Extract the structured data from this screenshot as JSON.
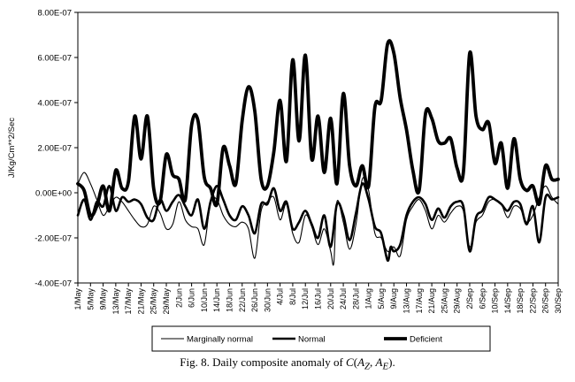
{
  "caption": {
    "prefix": "Fig. 8. Daily composite anomaly of ",
    "formula_html": "<i>C</i>(<i>A</i><sub><i>Z</i></sub>, <i>A</i><sub><i>E</i></sub>)."
  },
  "chart_data": {
    "type": "line",
    "title": "",
    "ylabel": "J/Kg/Cm**2/Sec",
    "xlabel": "",
    "ylim": [
      -4e-07,
      8e-07
    ],
    "y_ticks": [
      "8.00E-07",
      "6.00E-07",
      "4.00E-07",
      "2.00E-07",
      "0.00E+00",
      "-2.00E-07",
      "-4.00E-07"
    ],
    "y_tick_values": [
      8e-07,
      6e-07,
      4e-07,
      2e-07,
      0,
      -2e-07,
      -4e-07
    ],
    "x_start": "1/May",
    "x_end": "30/Sep",
    "n_days": 153,
    "x_tick_labels": [
      "1/May",
      "5/May",
      "9/May",
      "13/May",
      "17/May",
      "21/May",
      "25/May",
      "29/May",
      "2/Jun",
      "6/Jun",
      "10/Jun",
      "14/Jun",
      "18/Jun",
      "22/Jun",
      "26/Jun",
      "30/Jun",
      "4/Jul",
      "8/Jul",
      "12/Jul",
      "16/Jul",
      "20/Jul",
      "24/Jul",
      "28/Jul",
      "1/Aug",
      "5/Aug",
      "9/Aug",
      "13/Aug",
      "17/Aug",
      "21/Aug",
      "25/Aug",
      "29/Aug",
      "2/Sep",
      "6/Sep",
      "10/Sep",
      "14/Sep",
      "18/Sep",
      "22/Sep",
      "26/Sep",
      "30/Sep"
    ],
    "grid": false,
    "legend_position": "bottom",
    "series": [
      {
        "name": "Marginally normal",
        "style": "thin",
        "color": "#000000",
        "points": [
          [
            "1/May",
            0.4
          ],
          [
            "3/May",
            0.9
          ],
          [
            "5/May",
            0.4
          ],
          [
            "7/May",
            -0.3
          ],
          [
            "9/May",
            -1.0
          ],
          [
            "11/May",
            -0.6
          ],
          [
            "13/May",
            -0.2
          ],
          [
            "15/May",
            -0.4
          ],
          [
            "17/May",
            -0.8
          ],
          [
            "19/May",
            -1.2
          ],
          [
            "21/May",
            -1.5
          ],
          [
            "23/May",
            -1.4
          ],
          [
            "25/May",
            -0.6
          ],
          [
            "27/May",
            -0.9
          ],
          [
            "29/May",
            -1.6
          ],
          [
            "31/May",
            -1.4
          ],
          [
            "2/Jun",
            -0.4
          ],
          [
            "4/Jun",
            -1.2
          ],
          [
            "6/Jun",
            -1.5
          ],
          [
            "8/Jun",
            -1.6
          ],
          [
            "10/Jun",
            -2.3
          ],
          [
            "12/Jun",
            -0.4
          ],
          [
            "14/Jun",
            -0.3
          ],
          [
            "16/Jun",
            -1.0
          ],
          [
            "18/Jun",
            -1.4
          ],
          [
            "20/Jun",
            -1.5
          ],
          [
            "22/Jun",
            -1.3
          ],
          [
            "24/Jun",
            -1.6
          ],
          [
            "26/Jun",
            -2.9
          ],
          [
            "28/Jun",
            -0.8
          ],
          [
            "30/Jun",
            -0.4
          ],
          [
            "2/Jul",
            -0.2
          ],
          [
            "4/Jul",
            -1.2
          ],
          [
            "6/Jul",
            -0.5
          ],
          [
            "8/Jul",
            -1.8
          ],
          [
            "10/Jul",
            -2.2
          ],
          [
            "12/Jul",
            -1.0
          ],
          [
            "14/Jul",
            -1.5
          ],
          [
            "16/Jul",
            -2.3
          ],
          [
            "18/Jul",
            -1.6
          ],
          [
            "20/Jul",
            -2.6
          ],
          [
            "21/Jul",
            -3.1
          ],
          [
            "22/Jul",
            -0.4
          ],
          [
            "24/Jul",
            -1.3
          ],
          [
            "26/Jul",
            -2.5
          ],
          [
            "28/Jul",
            -1.4
          ],
          [
            "30/Jul",
            0.6
          ],
          [
            "1/Aug",
            0.1
          ],
          [
            "3/Aug",
            -1.8
          ],
          [
            "5/Aug",
            -2.0
          ],
          [
            "7/Aug",
            -2.6
          ],
          [
            "9/Aug",
            -2.4
          ],
          [
            "11/Aug",
            -2.8
          ],
          [
            "13/Aug",
            -1.2
          ],
          [
            "15/Aug",
            -0.6
          ],
          [
            "17/Aug",
            -0.3
          ],
          [
            "19/Aug",
            -0.8
          ],
          [
            "21/Aug",
            -1.6
          ],
          [
            "23/Aug",
            -1.0
          ],
          [
            "25/Aug",
            -1.3
          ],
          [
            "27/Aug",
            -0.9
          ],
          [
            "29/Aug",
            -0.6
          ],
          [
            "31/Aug",
            -0.8
          ],
          [
            "2/Sep",
            -2.4
          ],
          [
            "4/Sep",
            -1.3
          ],
          [
            "6/Sep",
            -1.0
          ],
          [
            "8/Sep",
            -0.4
          ],
          [
            "10/Sep",
            -0.3
          ],
          [
            "12/Sep",
            -0.5
          ],
          [
            "14/Sep",
            -1.1
          ],
          [
            "16/Sep",
            -0.6
          ],
          [
            "18/Sep",
            -0.7
          ],
          [
            "20/Sep",
            -1.3
          ],
          [
            "22/Sep",
            -1.0
          ],
          [
            "24/Sep",
            -0.2
          ],
          [
            "26/Sep",
            0.3
          ],
          [
            "28/Sep",
            -0.2
          ],
          [
            "30/Sep",
            -0.5
          ]
        ]
      },
      {
        "name": "Normal",
        "style": "medium",
        "color": "#000000",
        "points": [
          [
            "1/May",
            -1.0
          ],
          [
            "3/May",
            -0.3
          ],
          [
            "5/May",
            -1.2
          ],
          [
            "7/May",
            -0.4
          ],
          [
            "9/May",
            -0.6
          ],
          [
            "11/May",
            0.3
          ],
          [
            "13/May",
            -0.8
          ],
          [
            "15/May",
            -0.2
          ],
          [
            "17/May",
            -0.4
          ],
          [
            "19/May",
            -0.3
          ],
          [
            "21/May",
            -0.5
          ],
          [
            "23/May",
            -1.1
          ],
          [
            "25/May",
            -1.2
          ],
          [
            "27/May",
            -0.3
          ],
          [
            "29/May",
            -0.8
          ],
          [
            "31/May",
            -0.4
          ],
          [
            "2/Jun",
            -0.1
          ],
          [
            "4/Jun",
            -0.6
          ],
          [
            "6/Jun",
            -1.0
          ],
          [
            "8/Jun",
            -0.3
          ],
          [
            "10/Jun",
            -1.6
          ],
          [
            "12/Jun",
            -0.4
          ],
          [
            "14/Jun",
            0.3
          ],
          [
            "16/Jun",
            -0.3
          ],
          [
            "18/Jun",
            -1.0
          ],
          [
            "20/Jun",
            -1.2
          ],
          [
            "22/Jun",
            -0.6
          ],
          [
            "24/Jun",
            -1.0
          ],
          [
            "26/Jun",
            -1.8
          ],
          [
            "28/Jun",
            -0.5
          ],
          [
            "30/Jun",
            -0.5
          ],
          [
            "2/Jul",
            0.2
          ],
          [
            "4/Jul",
            -0.8
          ],
          [
            "6/Jul",
            -0.4
          ],
          [
            "8/Jul",
            -1.6
          ],
          [
            "10/Jul",
            -1.3
          ],
          [
            "12/Jul",
            -0.8
          ],
          [
            "14/Jul",
            -1.4
          ],
          [
            "16/Jul",
            -2.0
          ],
          [
            "18/Jul",
            -1.0
          ],
          [
            "20/Jul",
            -2.4
          ],
          [
            "22/Jul",
            -0.5
          ],
          [
            "24/Jul",
            -1.0
          ],
          [
            "26/Jul",
            -2.1
          ],
          [
            "28/Jul",
            -0.9
          ],
          [
            "30/Jul",
            0.4
          ],
          [
            "1/Aug",
            -0.3
          ],
          [
            "3/Aug",
            -1.5
          ],
          [
            "5/Aug",
            -1.8
          ],
          [
            "7/Aug",
            -3.0
          ],
          [
            "8/Aug",
            -2.4
          ],
          [
            "9/Aug",
            -2.6
          ],
          [
            "11/Aug",
            -2.3
          ],
          [
            "13/Aug",
            -1.0
          ],
          [
            "15/Aug",
            -0.4
          ],
          [
            "17/Aug",
            -0.2
          ],
          [
            "19/Aug",
            -0.5
          ],
          [
            "21/Aug",
            -1.2
          ],
          [
            "23/Aug",
            -0.7
          ],
          [
            "25/Aug",
            -1.1
          ],
          [
            "27/Aug",
            -0.6
          ],
          [
            "29/Aug",
            -0.4
          ],
          [
            "31/Aug",
            -0.6
          ],
          [
            "2/Sep",
            -2.6
          ],
          [
            "4/Sep",
            -1.1
          ],
          [
            "6/Sep",
            -0.8
          ],
          [
            "8/Sep",
            -0.2
          ],
          [
            "10/Sep",
            -0.3
          ],
          [
            "12/Sep",
            -0.5
          ],
          [
            "14/Sep",
            -0.8
          ],
          [
            "16/Sep",
            -0.4
          ],
          [
            "18/Sep",
            -0.5
          ],
          [
            "20/Sep",
            -1.4
          ],
          [
            "22/Sep",
            -0.6
          ],
          [
            "24/Sep",
            -2.2
          ],
          [
            "26/Sep",
            -0.2
          ],
          [
            "28/Sep",
            -0.3
          ],
          [
            "30/Sep",
            -0.2
          ]
        ]
      },
      {
        "name": "Deficient",
        "style": "thick",
        "color": "#000000",
        "points": [
          [
            "1/May",
            0.4
          ],
          [
            "3/May",
            0.1
          ],
          [
            "5/May",
            -1.0
          ],
          [
            "7/May",
            -0.6
          ],
          [
            "9/May",
            0.3
          ],
          [
            "11/May",
            -0.8
          ],
          [
            "13/May",
            1.0
          ],
          [
            "15/May",
            0.2
          ],
          [
            "17/May",
            0.5
          ],
          [
            "19/May",
            3.4
          ],
          [
            "21/May",
            1.5
          ],
          [
            "23/May",
            3.4
          ],
          [
            "25/May",
            0.2
          ],
          [
            "27/May",
            -0.4
          ],
          [
            "29/May",
            1.7
          ],
          [
            "31/May",
            0.8
          ],
          [
            "2/Jun",
            0.6
          ],
          [
            "4/Jun",
            -0.3
          ],
          [
            "6/Jun",
            3.0
          ],
          [
            "8/Jun",
            3.2
          ],
          [
            "10/Jun",
            0.7
          ],
          [
            "12/Jun",
            0.2
          ],
          [
            "14/Jun",
            -0.5
          ],
          [
            "16/Jun",
            2.0
          ],
          [
            "18/Jun",
            1.2
          ],
          [
            "20/Jun",
            0.4
          ],
          [
            "22/Jun",
            3.2
          ],
          [
            "24/Jun",
            4.7
          ],
          [
            "26/Jun",
            3.6
          ],
          [
            "28/Jun",
            0.6
          ],
          [
            "30/Jun",
            0.3
          ],
          [
            "2/Jul",
            1.8
          ],
          [
            "4/Jul",
            4.1
          ],
          [
            "6/Jul",
            1.4
          ],
          [
            "8/Jul",
            5.9
          ],
          [
            "10/Jul",
            2.3
          ],
          [
            "12/Jul",
            6.1
          ],
          [
            "14/Jul",
            1.5
          ],
          [
            "16/Jul",
            3.4
          ],
          [
            "18/Jul",
            0.9
          ],
          [
            "20/Jul",
            3.3
          ],
          [
            "22/Jul",
            0.4
          ],
          [
            "24/Jul",
            4.4
          ],
          [
            "26/Jul",
            1.2
          ],
          [
            "28/Jul",
            0.3
          ],
          [
            "30/Jul",
            1.2
          ],
          [
            "1/Aug",
            0.3
          ],
          [
            "3/Aug",
            3.8
          ],
          [
            "5/Aug",
            4.1
          ],
          [
            "7/Aug",
            6.6
          ],
          [
            "9/Aug",
            6.2
          ],
          [
            "11/Aug",
            4.2
          ],
          [
            "13/Aug",
            2.8
          ],
          [
            "15/Aug",
            1.0
          ],
          [
            "17/Aug",
            0.1
          ],
          [
            "19/Aug",
            3.5
          ],
          [
            "21/Aug",
            3.3
          ],
          [
            "23/Aug",
            2.3
          ],
          [
            "25/Aug",
            2.2
          ],
          [
            "27/Aug",
            2.4
          ],
          [
            "29/Aug",
            1.1
          ],
          [
            "31/Aug",
            0.9
          ],
          [
            "2/Sep",
            6.2
          ],
          [
            "4/Sep",
            3.4
          ],
          [
            "6/Sep",
            2.8
          ],
          [
            "8/Sep",
            3.1
          ],
          [
            "10/Sep",
            1.3
          ],
          [
            "12/Sep",
            2.2
          ],
          [
            "14/Sep",
            0.2
          ],
          [
            "16/Sep",
            2.4
          ],
          [
            "18/Sep",
            0.6
          ],
          [
            "20/Sep",
            0.1
          ],
          [
            "22/Sep",
            0.3
          ],
          [
            "24/Sep",
            -0.5
          ],
          [
            "26/Sep",
            1.2
          ],
          [
            "28/Sep",
            0.6
          ],
          [
            "30/Sep",
            0.6
          ]
        ]
      }
    ],
    "y_unit_scale": 1e-07
  }
}
